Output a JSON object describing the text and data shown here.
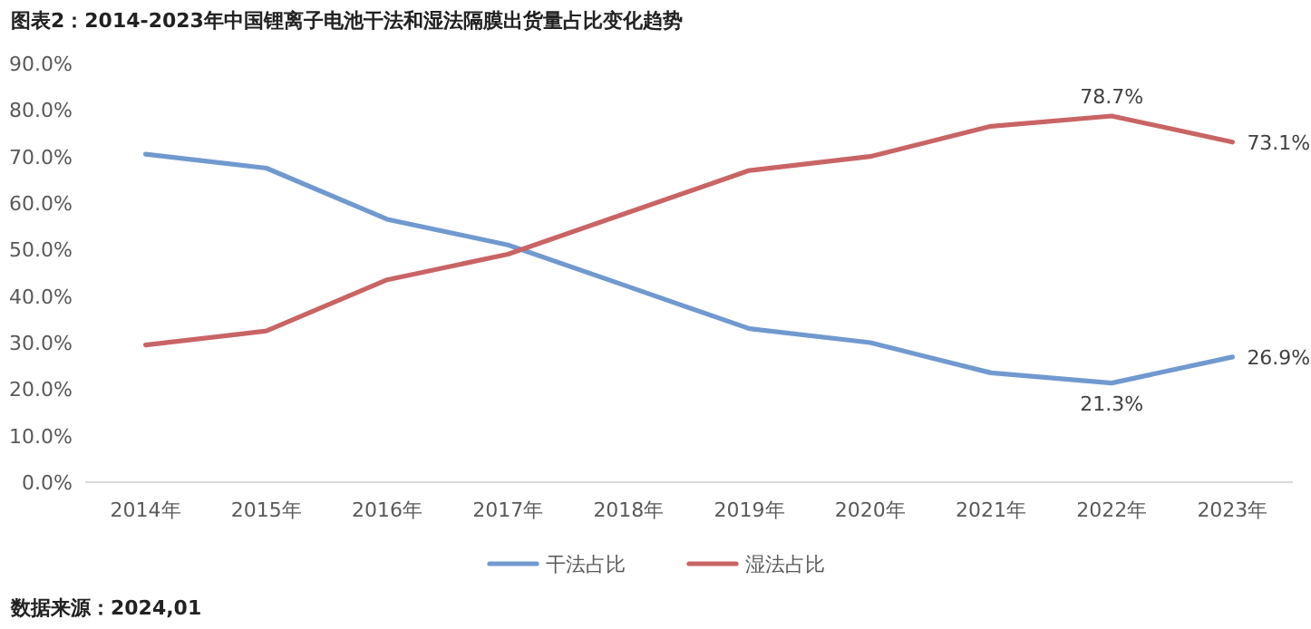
{
  "chart_data": {
    "type": "line",
    "title": "图表2：2014-2023年中国锂离子电池干法和湿法隔膜出货量占比变化趋势",
    "categories": [
      "2014年",
      "2015年",
      "2016年",
      "2017年",
      "2018年",
      "2019年",
      "2020年",
      "2021年",
      "2022年",
      "2023年"
    ],
    "ylim": [
      0,
      90
    ],
    "yticks": [
      {
        "value": 0,
        "label": "0.0%"
      },
      {
        "value": 10,
        "label": "10.0%"
      },
      {
        "value": 20,
        "label": "20.0%"
      },
      {
        "value": 30,
        "label": "30.0%"
      },
      {
        "value": 40,
        "label": "40.0%"
      },
      {
        "value": 50,
        "label": "50.0%"
      },
      {
        "value": 60,
        "label": "60.0%"
      },
      {
        "value": 70,
        "label": "70.0%"
      },
      {
        "value": 80,
        "label": "80.0%"
      },
      {
        "value": 90,
        "label": "90.0%"
      }
    ],
    "series": [
      {
        "name": "干法占比",
        "color": "#7199cf",
        "values": [
          70.5,
          67.5,
          56.5,
          51,
          42,
          33,
          30,
          23.5,
          21.3,
          26.9
        ],
        "value_labels": [
          null,
          null,
          null,
          null,
          null,
          null,
          null,
          null,
          "21.3%",
          "26.9%"
        ]
      },
      {
        "name": "湿法占比",
        "color": "#c96465",
        "values": [
          29.5,
          32.5,
          43.5,
          49,
          58,
          67,
          70,
          76.5,
          78.7,
          73.1
        ],
        "value_labels": [
          null,
          null,
          null,
          null,
          null,
          null,
          null,
          null,
          "78.7%",
          "73.1%"
        ]
      }
    ],
    "grid": false,
    "legend": "bottom",
    "annotations": [
      "数据来源：2024,01"
    ]
  }
}
